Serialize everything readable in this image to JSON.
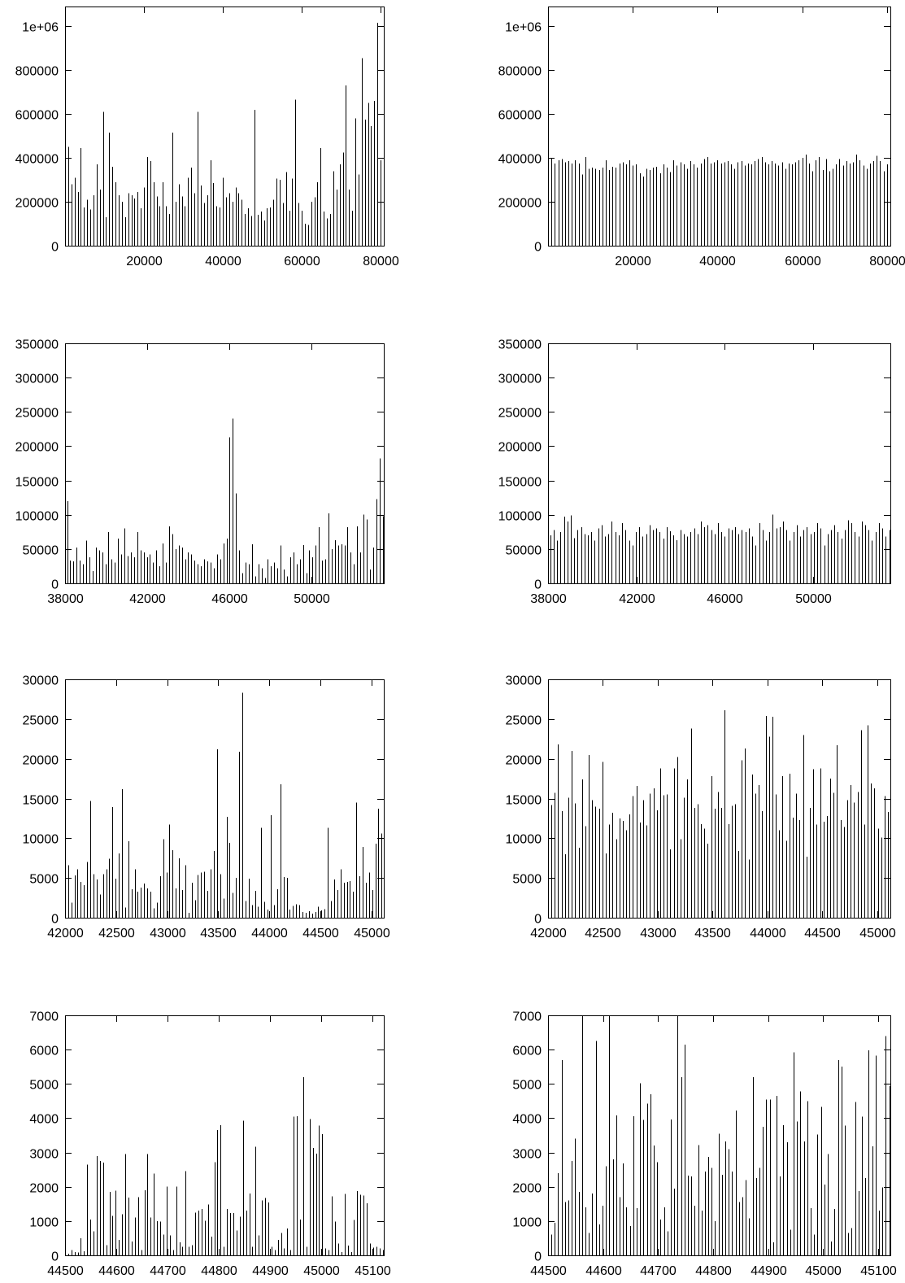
{
  "page": {
    "description": "Figure with eight gnuplot-style impulse histograms arranged in four rows and two columns"
  },
  "colors": {
    "background": "#ffffff",
    "axis": "#000000",
    "bars": "#000000",
    "text": "#000000"
  },
  "chart_data": [
    {
      "id": "row1-left",
      "type": "bar",
      "style": "impulses",
      "title": "",
      "xlabel": "",
      "ylabel": "",
      "legend": "none",
      "grid": "off",
      "xlim": [
        0,
        80800
      ],
      "ylim": [
        0,
        1090000
      ],
      "x_ticks": [
        20000,
        40000,
        60000,
        80000
      ],
      "x_tick_labels": [
        "20000",
        "40000",
        "60000",
        "80000"
      ],
      "y_ticks": [
        0,
        200000,
        400000,
        600000,
        800000,
        1000000
      ],
      "y_tick_labels": [
        "0",
        "200000",
        "400000",
        "600000",
        "800000",
        "1e+06"
      ],
      "x_start": 800,
      "x_step": 800,
      "values": [
        450000,
        280000,
        310000,
        245000,
        445000,
        175000,
        210000,
        165000,
        230000,
        370000,
        255000,
        610000,
        130000,
        515000,
        360000,
        290000,
        230000,
        200000,
        130000,
        240000,
        230000,
        215000,
        245000,
        170000,
        265000,
        405000,
        385000,
        290000,
        225000,
        180000,
        290000,
        180000,
        145000,
        515000,
        200000,
        280000,
        225000,
        180000,
        310000,
        355000,
        240000,
        610000,
        275000,
        195000,
        230000,
        390000,
        285000,
        180000,
        175000,
        310000,
        220000,
        240000,
        200000,
        265000,
        240000,
        210000,
        145000,
        170000,
        135000,
        620000,
        140000,
        155000,
        115000,
        170000,
        175000,
        210000,
        305000,
        300000,
        195000,
        335000,
        160000,
        305000,
        665000,
        195000,
        160000,
        100000,
        95000,
        200000,
        220000,
        290000,
        445000,
        155000,
        125000,
        145000,
        340000,
        255000,
        370000,
        425000,
        730000,
        255000,
        160000,
        580000,
        325000,
        855000,
        575000,
        650000,
        545000,
        660000,
        1015000,
        390000
      ]
    },
    {
      "id": "row1-right",
      "type": "bar",
      "style": "impulses",
      "title": "",
      "xlabel": "",
      "ylabel": "",
      "legend": "none",
      "grid": "off",
      "xlim": [
        0,
        80800
      ],
      "ylim": [
        0,
        1090000
      ],
      "x_ticks": [
        20000,
        40000,
        60000,
        80000
      ],
      "x_tick_labels": [
        "20000",
        "40000",
        "60000",
        "80000"
      ],
      "y_ticks": [
        0,
        200000,
        400000,
        600000,
        800000,
        1000000
      ],
      "y_tick_labels": [
        "0",
        "200000",
        "400000",
        "600000",
        "800000",
        "1e+06"
      ],
      "x_start": 800,
      "x_step": 800,
      "values": [
        400000,
        375000,
        390000,
        395000,
        380000,
        385000,
        375000,
        390000,
        375000,
        325000,
        405000,
        350000,
        355000,
        350000,
        345000,
        355000,
        390000,
        345000,
        360000,
        355000,
        375000,
        380000,
        370000,
        390000,
        365000,
        370000,
        330000,
        315000,
        350000,
        345000,
        355000,
        360000,
        330000,
        370000,
        355000,
        335000,
        390000,
        365000,
        380000,
        370000,
        350000,
        385000,
        370000,
        355000,
        375000,
        395000,
        405000,
        375000,
        380000,
        390000,
        375000,
        380000,
        385000,
        370000,
        350000,
        380000,
        385000,
        365000,
        375000,
        370000,
        385000,
        395000,
        405000,
        380000,
        370000,
        385000,
        375000,
        365000,
        380000,
        350000,
        375000,
        370000,
        380000,
        390000,
        400000,
        415000,
        375000,
        340000,
        390000,
        405000,
        345000,
        395000,
        340000,
        350000,
        370000,
        395000,
        365000,
        385000,
        375000,
        380000,
        415000,
        390000,
        365000,
        350000,
        375000,
        385000,
        410000,
        385000,
        340000,
        370000
      ]
    },
    {
      "id": "row2-left",
      "type": "bar",
      "style": "impulses",
      "title": "",
      "xlabel": "",
      "ylabel": "",
      "legend": "none",
      "grid": "off",
      "xlim": [
        38000,
        53500
      ],
      "ylim": [
        0,
        350000
      ],
      "x_ticks": [
        38000,
        42000,
        46000,
        50000
      ],
      "x_tick_labels": [
        "38000",
        "42000",
        "46000",
        "50000"
      ],
      "y_ticks": [
        0,
        50000,
        100000,
        150000,
        200000,
        250000,
        300000,
        350000
      ],
      "y_tick_labels": [
        "0",
        "50000",
        "100000",
        "150000",
        "200000",
        "250000",
        "300000",
        "350000"
      ],
      "x_start": 38100,
      "x_step": 155,
      "values": [
        120000,
        33000,
        32000,
        52000,
        33000,
        28000,
        62000,
        38000,
        18000,
        52000,
        48000,
        45000,
        28000,
        75000,
        35000,
        30000,
        65000,
        42000,
        80000,
        40000,
        45000,
        38000,
        75000,
        48000,
        45000,
        38000,
        42000,
        30000,
        48000,
        25000,
        58000,
        30000,
        83000,
        72000,
        50000,
        55000,
        52000,
        35000,
        45000,
        42000,
        33000,
        28000,
        25000,
        35000,
        32000,
        30000,
        22000,
        42000,
        35000,
        58000,
        65000,
        213000,
        240000,
        131000,
        48000,
        15000,
        30000,
        28000,
        57000,
        10000,
        28000,
        22000,
        8000,
        35000,
        25000,
        30000,
        22000,
        55000,
        20000,
        10000,
        38000,
        45000,
        28000,
        35000,
        56000,
        15000,
        48000,
        38000,
        55000,
        82000,
        33000,
        35000,
        102000,
        50000,
        63000,
        55000,
        57000,
        55000,
        82000,
        45000,
        28000,
        83000,
        45000,
        100000,
        93000,
        20000,
        52000,
        123000,
        182000,
        98000
      ]
    },
    {
      "id": "row2-right",
      "type": "bar",
      "style": "impulses",
      "title": "",
      "xlabel": "",
      "ylabel": "",
      "legend": "none",
      "grid": "off",
      "xlim": [
        38000,
        53500
      ],
      "ylim": [
        0,
        350000
      ],
      "x_ticks": [
        38000,
        42000,
        46000,
        50000
      ],
      "x_tick_labels": [
        "38000",
        "42000",
        "46000",
        "50000"
      ],
      "y_ticks": [
        0,
        50000,
        100000,
        150000,
        200000,
        250000,
        300000,
        350000
      ],
      "y_tick_labels": [
        "0",
        "50000",
        "100000",
        "150000",
        "200000",
        "250000",
        "300000",
        "350000"
      ],
      "x_start": 38100,
      "x_step": 155,
      "values": [
        70000,
        78000,
        62000,
        75000,
        97000,
        90000,
        99000,
        66000,
        78000,
        82000,
        72000,
        70000,
        75000,
        62000,
        80000,
        85000,
        68000,
        72000,
        90000,
        75000,
        70000,
        88000,
        78000,
        62000,
        55000,
        75000,
        82000,
        68000,
        72000,
        85000,
        78000,
        80000,
        75000,
        65000,
        82000,
        76000,
        70000,
        63000,
        78000,
        72000,
        68000,
        75000,
        80000,
        72000,
        90000,
        82000,
        85000,
        78000,
        72000,
        88000,
        75000,
        68000,
        80000,
        78000,
        82000,
        72000,
        78000,
        75000,
        80000,
        68000,
        55000,
        88000,
        78000,
        62000,
        75000,
        100000,
        80000,
        82000,
        90000,
        78000,
        62000,
        75000,
        85000,
        68000,
        78000,
        82000,
        72000,
        75000,
        88000,
        80000,
        55000,
        72000,
        78000,
        85000,
        75000,
        65000,
        78000,
        92000,
        88000,
        75000,
        68000,
        90000,
        85000,
        78000,
        62000,
        75000,
        88000,
        80000,
        68000,
        78000
      ]
    },
    {
      "id": "row3-left",
      "type": "bar",
      "style": "impulses",
      "title": "",
      "xlabel": "",
      "ylabel": "",
      "legend": "none",
      "grid": "off",
      "xlim": [
        42000,
        45120
      ],
      "ylim": [
        0,
        30000
      ],
      "x_ticks": [
        42000,
        42500,
        43000,
        43500,
        44000,
        44500,
        45000
      ],
      "x_tick_labels": [
        "42000",
        "42500",
        "43000",
        "43500",
        "44000",
        "44500",
        "45000"
      ],
      "y_ticks": [
        0,
        5000,
        10000,
        15000,
        20000,
        25000,
        30000
      ],
      "y_tick_labels": [
        "0",
        "5000",
        "10000",
        "15000",
        "20000",
        "25000",
        "30000"
      ],
      "x_start": 42030,
      "x_step": 31,
      "values": [
        6600,
        1900,
        5300,
        6100,
        4500,
        4100,
        7000,
        14700,
        5500,
        4800,
        2900,
        5500,
        6100,
        7400,
        13900,
        4900,
        8100,
        16200,
        1300,
        9600,
        3600,
        6100,
        3300,
        3800,
        4300,
        3700,
        3300,
        1200,
        1900,
        5200,
        9900,
        5700,
        11700,
        8500,
        3700,
        7500,
        3500,
        6600,
        600,
        4400,
        2200,
        5400,
        5700,
        5800,
        3400,
        6100,
        8400,
        21200,
        5500,
        2400,
        12700,
        9400,
        3100,
        5000,
        20900,
        28300,
        2100,
        4900,
        1600,
        3400,
        1400,
        11300,
        2000,
        1000,
        12900,
        1600,
        3600,
        16800,
        5100,
        5000,
        1000,
        1500,
        1700,
        1600,
        700,
        600,
        800,
        500,
        700,
        1400,
        900,
        1100,
        11300,
        2100,
        4800,
        3500,
        6100,
        4400,
        4500,
        4600,
        3300,
        14500,
        5200,
        8900,
        4400,
        5700,
        3500,
        9300,
        13700,
        10600
      ]
    },
    {
      "id": "row3-right",
      "type": "bar",
      "style": "impulses",
      "title": "",
      "xlabel": "",
      "ylabel": "",
      "legend": "none",
      "grid": "off",
      "xlim": [
        42000,
        45120
      ],
      "ylim": [
        0,
        30000
      ],
      "x_ticks": [
        42000,
        42500,
        43000,
        43500,
        44000,
        44500,
        45000
      ],
      "x_tick_labels": [
        "42000",
        "42500",
        "43000",
        "43500",
        "44000",
        "44500",
        "45000"
      ],
      "y_ticks": [
        0,
        5000,
        10000,
        15000,
        20000,
        25000,
        30000
      ],
      "y_tick_labels": [
        "0",
        "5000",
        "10000",
        "15000",
        "20000",
        "25000",
        "30000"
      ],
      "x_start": 42030,
      "x_step": 31,
      "values": [
        14200,
        15700,
        21800,
        13400,
        8000,
        15100,
        21000,
        14400,
        8800,
        17400,
        11500,
        20500,
        14800,
        14000,
        13700,
        19600,
        8100,
        11700,
        13200,
        9900,
        12500,
        12200,
        11000,
        13000,
        15300,
        16600,
        12000,
        14800,
        11600,
        15600,
        16300,
        13500,
        18800,
        15400,
        15500,
        8600,
        18800,
        20200,
        9900,
        15100,
        17400,
        23800,
        13800,
        14300,
        11800,
        11200,
        9300,
        17800,
        13700,
        15800,
        13800,
        26100,
        11800,
        14100,
        14300,
        8400,
        19800,
        21300,
        7300,
        18000,
        15600,
        16700,
        13400,
        25400,
        22800,
        25300,
        15500,
        11000,
        17800,
        9700,
        18100,
        12600,
        15600,
        12300,
        23000,
        7700,
        13800,
        18700,
        11700,
        18800,
        12100,
        12800,
        17500,
        15700,
        21700,
        12300,
        11400,
        14800,
        16700,
        14500,
        15800,
        23600,
        11700,
        24200,
        16900,
        16300,
        11200,
        10100,
        15300,
        13300
      ]
    },
    {
      "id": "row4-left",
      "type": "bar",
      "style": "impulses",
      "title": "",
      "xlabel": "",
      "ylabel": "",
      "legend": "none",
      "grid": "off",
      "xlim": [
        44500,
        45122
      ],
      "ylim": [
        0,
        7000
      ],
      "x_ticks": [
        44500,
        44600,
        44700,
        44800,
        44900,
        45000,
        45100
      ],
      "x_tick_labels": [
        "44500",
        "44600",
        "44700",
        "44800",
        "44900",
        "45000",
        "45100"
      ],
      "y_ticks": [
        0,
        1000,
        2000,
        3000,
        4000,
        5000,
        6000,
        7000
      ],
      "y_tick_labels": [
        "0",
        "1000",
        "2000",
        "3000",
        "4000",
        "5000",
        "6000",
        "7000"
      ],
      "x_start": 44506,
      "x_step": 6.2,
      "values": [
        50,
        150,
        100,
        80,
        500,
        120,
        2650,
        1050,
        700,
        2900,
        2750,
        2700,
        300,
        1850,
        1150,
        1890,
        450,
        1200,
        2950,
        1680,
        400,
        1100,
        1700,
        150,
        1900,
        2960,
        1100,
        2380,
        1000,
        980,
        600,
        2010,
        580,
        150,
        2010,
        380,
        250,
        2460,
        250,
        300,
        1250,
        1300,
        1350,
        1010,
        1480,
        550,
        2720,
        3650,
        3800,
        250,
        1350,
        1230,
        1230,
        720,
        1130,
        3930,
        1300,
        1800,
        250,
        3170,
        580,
        1600,
        1670,
        1540,
        250,
        150,
        450,
        650,
        200,
        780,
        150,
        4050,
        4060,
        1050,
        5200,
        250,
        3980,
        3130,
        2970,
        3780,
        3530,
        200,
        150,
        1720,
        980,
        350,
        100,
        1790,
        280,
        100,
        1030,
        1880,
        1770,
        1750,
        1520,
        350,
        220,
        250,
        200,
        150
      ]
    },
    {
      "id": "row4-right",
      "type": "bar",
      "style": "impulses",
      "title": "",
      "xlabel": "",
      "ylabel": "",
      "legend": "none",
      "grid": "off",
      "xlim": [
        44500,
        45122
      ],
      "ylim": [
        0,
        7000
      ],
      "x_ticks": [
        44500,
        44600,
        44700,
        44800,
        44900,
        45000,
        45100
      ],
      "x_tick_labels": [
        "44500",
        "44600",
        "44700",
        "44800",
        "44900",
        "45000",
        "45100"
      ],
      "y_ticks": [
        0,
        1000,
        2000,
        3000,
        4000,
        5000,
        6000,
        7000
      ],
      "y_tick_labels": [
        "0",
        "1000",
        "2000",
        "3000",
        "4000",
        "5000",
        "6000",
        "7000"
      ],
      "x_start": 44506,
      "x_step": 6.2,
      "values": [
        600,
        950,
        2400,
        5700,
        1550,
        1600,
        2750,
        3400,
        1850,
        7200,
        1400,
        650,
        1800,
        6250,
        900,
        1450,
        2600,
        7200,
        2800,
        4080,
        1700,
        2680,
        1400,
        850,
        4060,
        1380,
        5020,
        3950,
        4420,
        4700,
        3200,
        2720,
        1050,
        1400,
        700,
        3960,
        1950,
        7200,
        5200,
        6150,
        2320,
        2300,
        1450,
        3220,
        1300,
        2450,
        2870,
        2550,
        1000,
        3550,
        2350,
        3320,
        3100,
        2450,
        4220,
        1550,
        1700,
        2200,
        1080,
        5200,
        2250,
        2550,
        3750,
        4550,
        4550,
        380,
        4650,
        2300,
        3800,
        3300,
        750,
        5920,
        3900,
        4780,
        3320,
        4500,
        1380,
        600,
        3520,
        4330,
        2060,
        2950,
        400,
        1350,
        5700,
        5500,
        3780,
        650,
        800,
        4470,
        1870,
        4040,
        2250,
        5980,
        3180,
        5820,
        1300,
        1980,
        6400,
        4930
      ]
    }
  ]
}
